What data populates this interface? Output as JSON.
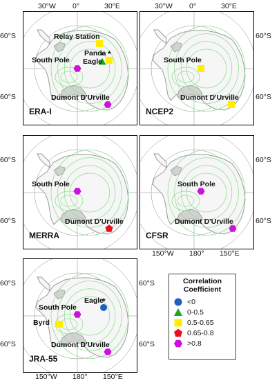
{
  "panels": [
    {
      "model": "ERA-I",
      "top": [
        "30°W",
        "0°",
        "30°E"
      ],
      "left": [
        "60°S",
        "60°S"
      ],
      "right": [],
      "bottom": [],
      "stations": [
        {
          "name": "Relay Station",
          "marker": "square",
          "color": "#ffee00"
        },
        {
          "name": "Panda",
          "marker": "square",
          "color": "#ffee00",
          "star": true
        },
        {
          "name": "Eagle",
          "marker": "triangle",
          "color": "#1ea61e",
          "star": true
        },
        {
          "name": "South Pole",
          "marker": "hexagon",
          "color": "#cc11dd"
        },
        {
          "name": "Dumont D'Urville",
          "marker": "hexagon",
          "color": "#cc11dd"
        }
      ]
    },
    {
      "model": "NCEP2",
      "top": [
        "30°W",
        "0°",
        "30°E"
      ],
      "left": [],
      "right": [
        "60°S",
        "60°S"
      ],
      "bottom": [],
      "stations": [
        {
          "name": "South Pole",
          "marker": "square",
          "color": "#ffee00"
        },
        {
          "name": "Dumont D'Urville",
          "marker": "square",
          "color": "#ffee00"
        }
      ]
    },
    {
      "model": "MERRA",
      "top": [],
      "left": [
        "60°S",
        "60°S"
      ],
      "right": [],
      "bottom": [],
      "stations": [
        {
          "name": "South Pole",
          "marker": "hexagon",
          "color": "#cc11dd"
        },
        {
          "name": "Dumont D'Urville",
          "marker": "pentagon",
          "color": "#e8101e"
        }
      ]
    },
    {
      "model": "CFSR",
      "top": [],
      "left": [],
      "right": [
        "60°S",
        "60°S"
      ],
      "bottom": [
        "150°W",
        "180°",
        "150°E"
      ],
      "stations": [
        {
          "name": "South Pole",
          "marker": "hexagon",
          "color": "#cc11dd"
        },
        {
          "name": "Dumont D'Urville",
          "marker": "hexagon",
          "color": "#cc11dd"
        }
      ]
    },
    {
      "model": "JRA-55",
      "top": [],
      "left": [
        "60°S",
        "60°S"
      ],
      "right": [
        "60°S",
        "60°S"
      ],
      "bottom": [
        "150°W",
        "180°",
        "150°E"
      ],
      "stations": [
        {
          "name": "Eagle",
          "marker": "circle",
          "color": "#1f5fbf",
          "star": true
        },
        {
          "name": "South Pole",
          "marker": "hexagon",
          "color": "#cc11dd"
        },
        {
          "name": "Byrd",
          "marker": "square",
          "color": "#ffee00"
        },
        {
          "name": "Dumont D'Urville",
          "marker": "hexagon",
          "color": "#cc11dd"
        }
      ]
    }
  ],
  "legend": {
    "title_line1": "Correlation",
    "title_line2": "Coefficient",
    "items": [
      {
        "label": "<0",
        "marker": "circle",
        "color": "#1f5fbf"
      },
      {
        "label": "0-0.5",
        "marker": "triangle",
        "color": "#1ea61e"
      },
      {
        "label": "0.5-0.65",
        "marker": "square",
        "color": "#ffee00"
      },
      {
        "label": "0.65-0.8",
        "marker": "pentagon",
        "color": "#e8101e"
      },
      {
        "label": ">0.8",
        "marker": "hexagon",
        "color": "#cc11dd"
      }
    ]
  },
  "colors": {
    "land": "#f6f6f6",
    "coast": "#9a9a9a",
    "contour": "#8fe08f",
    "shelf": "#d2d2d2",
    "grid": "#8a8a8a"
  }
}
